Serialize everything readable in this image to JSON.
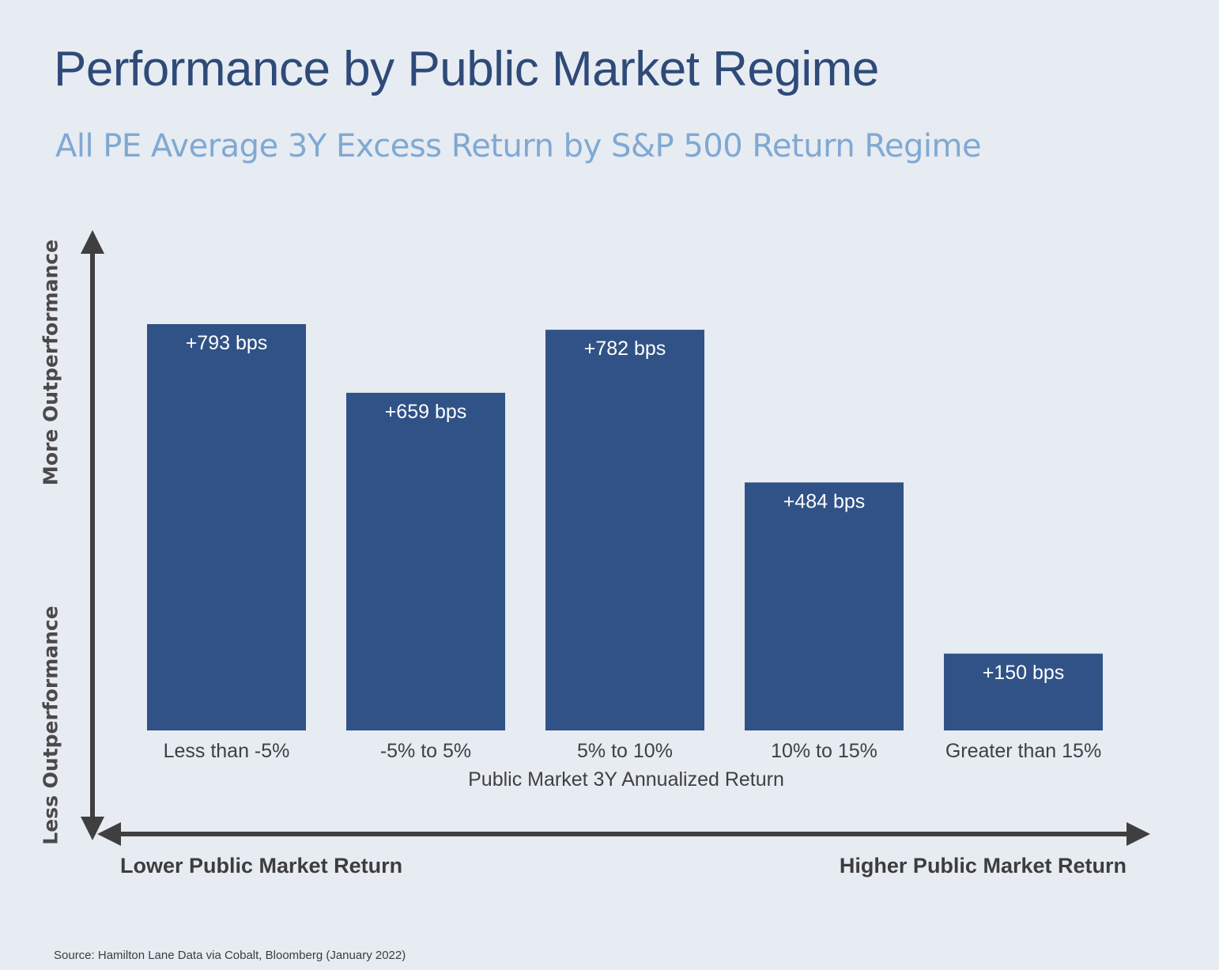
{
  "title": "Performance by Public Market Regime",
  "subtitle": "All PE Average 3Y Excess Return by S&P 500 Return Regime",
  "y_axis": {
    "top_label": "More Outperformance",
    "bottom_label": "Less Outperformance"
  },
  "x_axis": {
    "left_label": "Lower Public Market Return",
    "right_label": "Higher Public Market Return"
  },
  "source": "Source: Hamilton Lane Data via Cobalt, Bloomberg (January 2022)",
  "colors": {
    "bar": "#305286",
    "title": "#2e4a78",
    "subtitle": "#7fa9d3",
    "axis": "#3f3f3f",
    "background": "#e7ebf2"
  },
  "chart_data": {
    "type": "bar",
    "title": "All PE Average 3Y Excess Return by S&P 500 Return Regime",
    "xlabel": "Public Market 3Y Annualized Return",
    "ylabel": "",
    "categories": [
      "Less than -5%",
      "-5% to 5%",
      "5% to 10%",
      "10% to 15%",
      "Greater than 15%"
    ],
    "values": [
      793,
      659,
      782,
      484,
      150
    ],
    "data_labels": [
      "+793 bps",
      "+659 bps",
      "+782 bps",
      "+484 bps",
      "+150 bps"
    ],
    "unit": "bps",
    "ylim": [
      0,
      793
    ],
    "grid": false,
    "legend": "none"
  }
}
